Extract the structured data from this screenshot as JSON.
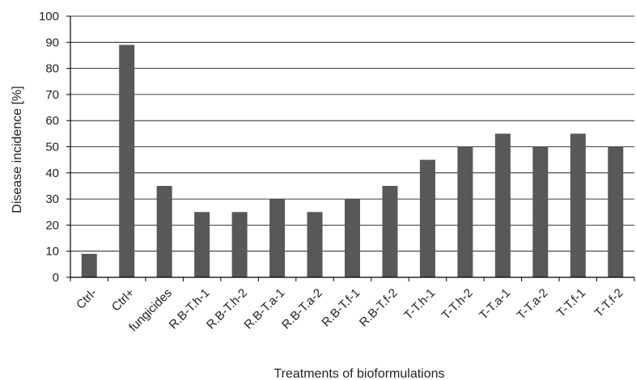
{
  "chart_data": {
    "type": "bar",
    "title": "",
    "xlabel": "Treatments of bioformulations",
    "ylabel": "Disease incidence [%]",
    "ylim": [
      0,
      100
    ],
    "yticks": [
      0,
      10,
      20,
      30,
      40,
      50,
      60,
      70,
      80,
      90,
      100
    ],
    "grid": true,
    "categories": [
      "Ctrl-",
      "Ctrl+",
      "fungicides",
      "R.B-T.h-1",
      "R.B-T.h-2",
      "R.B-T.a-1",
      "R.B-T.a-2",
      "R.B-T.f-1",
      "R.B-T.f-2",
      "T-T.h-1",
      "T-T.h-2",
      "T-T.a-1",
      "T-T.a-2",
      "T-T.f-1",
      "T-T.f-2"
    ],
    "values": [
      9,
      89,
      35,
      25,
      25,
      30,
      25,
      30,
      35,
      45,
      50,
      55,
      50,
      55,
      50
    ],
    "bar_color": "#58585a"
  }
}
